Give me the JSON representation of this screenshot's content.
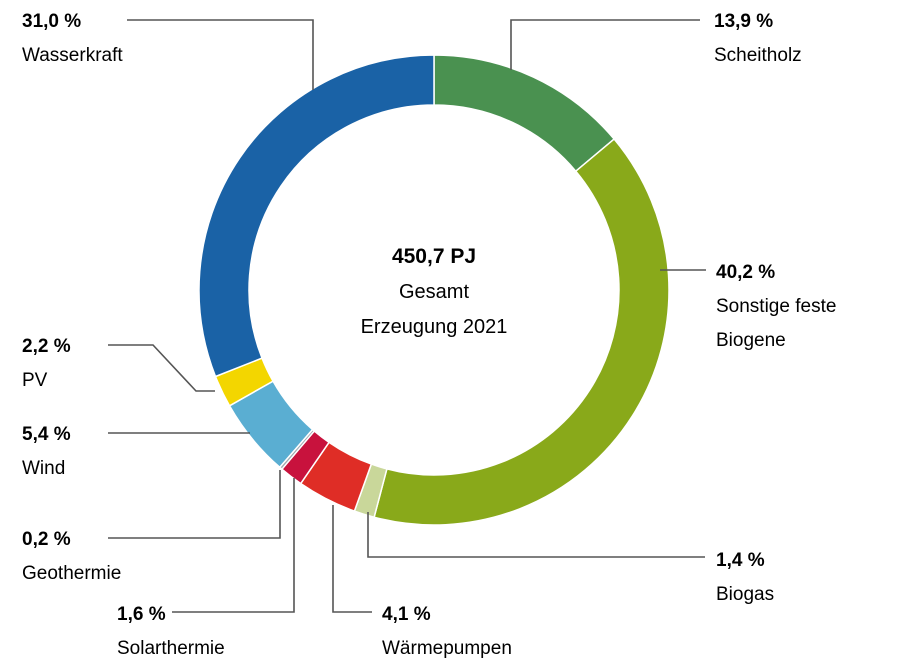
{
  "chart_data": {
    "type": "pie",
    "donut": true,
    "center": {
      "total": "450,7 PJ",
      "line1": "Gesamt",
      "line2": "Erzeugung 2021"
    },
    "slices": [
      {
        "label": "Scheitholz",
        "value": 13.9,
        "pct_label": "13,9 %",
        "color": "#4a9150"
      },
      {
        "label": "Sonstige feste Biogene",
        "label_lines": [
          "Sonstige feste",
          "Biogene"
        ],
        "value": 40.2,
        "pct_label": "40,2 %",
        "color": "#89a91a"
      },
      {
        "label": "Biogas",
        "value": 1.4,
        "pct_label": "1,4 %",
        "color": "#c9d79a"
      },
      {
        "label": "Wärmepumpen",
        "value": 4.1,
        "pct_label": "4,1 %",
        "color": "#df2d26"
      },
      {
        "label": "Solarthermie",
        "value": 1.6,
        "pct_label": "1,6 %",
        "color": "#c8123d"
      },
      {
        "label": "Geothermie",
        "value": 0.2,
        "pct_label": "0,2 %",
        "color": "#9fa9b0"
      },
      {
        "label": "Wind",
        "value": 5.4,
        "pct_label": "5,4 %",
        "color": "#5aaed2"
      },
      {
        "label": "PV",
        "value": 2.2,
        "pct_label": "2,2 %",
        "color": "#f3d600"
      },
      {
        "label": "Wasserkraft",
        "value": 31.0,
        "pct_label": "31,0 %",
        "color": "#1a62a6"
      }
    ]
  }
}
